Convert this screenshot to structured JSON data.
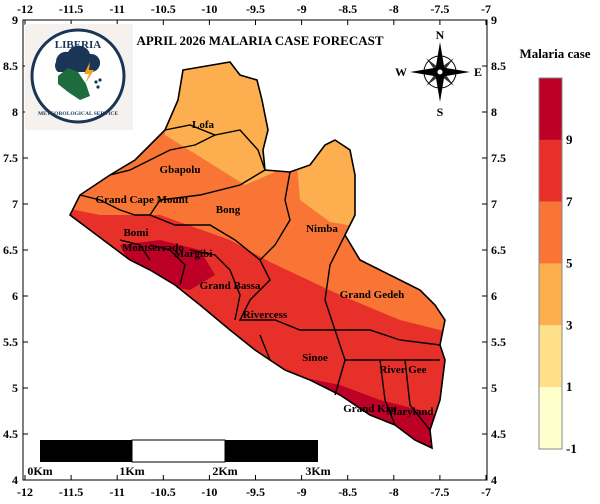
{
  "title": "APRIL 2026 MALARIA CASE FORECAST",
  "logo": {
    "top_text": "LIBERIA",
    "bottom_text": "METEOROLOGICAL SERVICE"
  },
  "compass": {
    "n": "N",
    "s": "S",
    "e": "E",
    "w": "W"
  },
  "x_ticks": [
    "-12",
    "-11.5",
    "-11",
    "-10.5",
    "-10",
    "-9.5",
    "-9",
    "-8.5",
    "-8",
    "-7.5",
    "-7"
  ],
  "y_ticks": [
    "9",
    "8.5",
    "8",
    "7.5",
    "7",
    "6.5",
    "6",
    "5.5",
    "5",
    "4.5",
    "4"
  ],
  "counties": [
    "Lofa",
    "Gbapolu",
    "Grand Cape Mount",
    "Bong",
    "Nimba",
    "Bomi",
    "Montserrado",
    "Margibi",
    "Grand Bassa",
    "Grand Gedeh",
    "Rivercess",
    "Sinoe",
    "River Gee",
    "Grand Kru",
    "Maryland"
  ],
  "legend": {
    "title": "Malaria case",
    "labels": [
      "9",
      "7",
      "5",
      "3",
      "1",
      "-1"
    ],
    "colors": [
      "#bd0026",
      "#e8302a",
      "#f87535",
      "#fdae4f",
      "#fee08b",
      "#ffffcc"
    ]
  },
  "scale_bar": {
    "labels": [
      "0Km",
      "1Km",
      "2Km",
      "3Km"
    ]
  }
}
